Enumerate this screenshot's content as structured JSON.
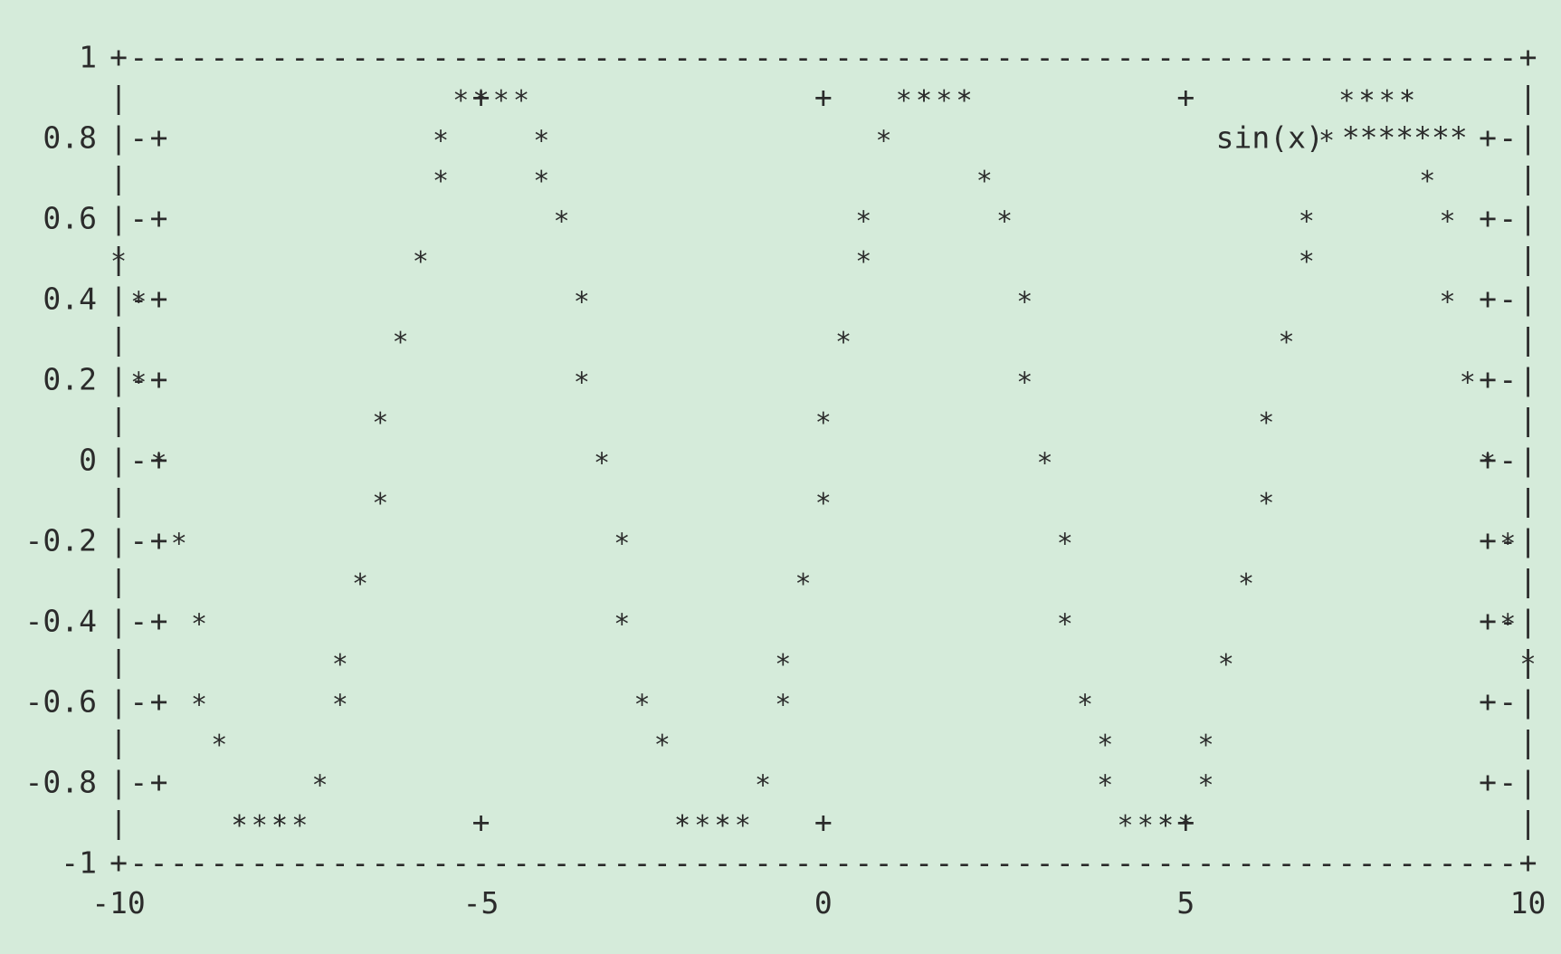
{
  "chart_data": {
    "type": "line",
    "style": "ascii",
    "title": "",
    "xlabel": "",
    "ylabel": "",
    "xlim": [
      -10,
      10
    ],
    "ylim": [
      -1,
      1
    ],
    "x_ticks": [
      -10,
      -5,
      0,
      5,
      10
    ],
    "x_tick_labels": [
      "-10",
      "-5",
      "0",
      "5",
      "10"
    ],
    "y_ticks": [
      1,
      0.8,
      0.6,
      0.4,
      0.2,
      0,
      -0.2,
      -0.4,
      -0.6,
      -0.8,
      -1
    ],
    "y_tick_labels": [
      "1",
      "0.8",
      "0.6",
      "0.4",
      "0.2",
      "0",
      "-0.2",
      "-0.4",
      "-0.6",
      "-0.8",
      "-1"
    ],
    "grid": false,
    "legend": {
      "position": "top-right",
      "entries": [
        "sin(x)"
      ],
      "marker": "*******"
    },
    "series": [
      {
        "name": "sin(x)",
        "marker": "*",
        "function": "sin(x)",
        "x_range": [
          -10,
          10
        ],
        "samples": 100
      }
    ],
    "plot_chars": {
      "star": "*",
      "plus": "+",
      "dash": "-",
      "pipe": "|"
    }
  }
}
